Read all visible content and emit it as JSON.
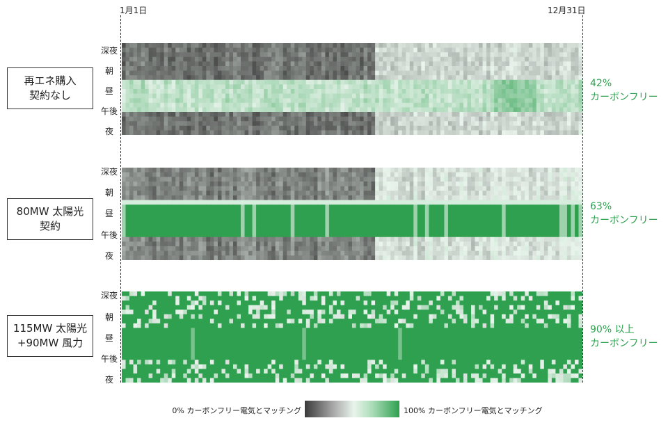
{
  "chart_data": {
    "type": "heatmap",
    "x_start_label": "1月1日",
    "x_end_label": "12月31日",
    "time_labels": [
      "深夜",
      "朝",
      "昼",
      "午後",
      "夜"
    ],
    "panels": [
      {
        "scenario_lines": [
          "再エネ購入",
          "契約なし"
        ],
        "result_lines": [
          "42%",
          "カーボンフリー"
        ],
        "carbon_free_percent": 42
      },
      {
        "scenario_lines": [
          "80MW 太陽光",
          "契約"
        ],
        "result_lines": [
          "63%",
          "カーボンフリー"
        ],
        "carbon_free_percent": 63
      },
      {
        "scenario_lines": [
          "115MW 太陽光",
          "+90MW 風力"
        ],
        "result_lines": [
          "90% 以上",
          "カーボンフリー"
        ],
        "carbon_free_percent": 90
      }
    ],
    "legend": {
      "low_label": "0% カーボンフリー電気とマッチング",
      "high_label": "100% カーボンフリー電気とマッチング",
      "colors": [
        "#3a3a3a",
        "#e9f4ec",
        "#2ea04f"
      ]
    }
  }
}
